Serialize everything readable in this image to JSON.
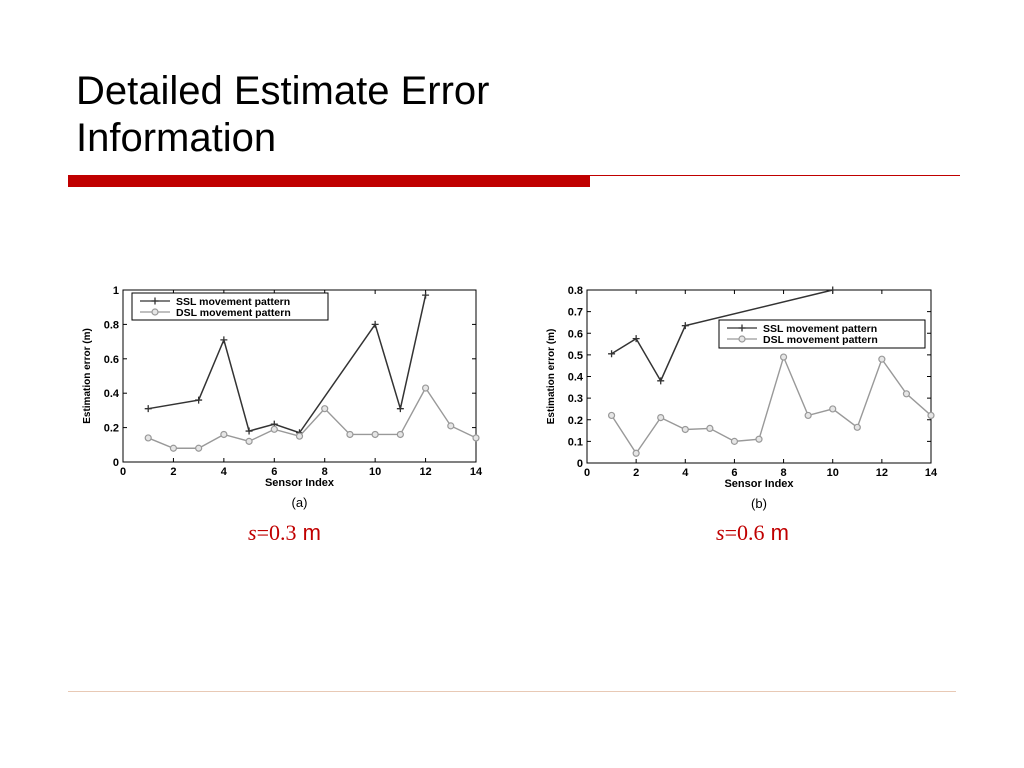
{
  "slide": {
    "title_line1": "Detailed Estimate Error",
    "title_line2": "Information",
    "accent_color": "#c00000"
  },
  "captions": [
    {
      "symbol": "s",
      "value": "=0.3",
      "unit": " m"
    },
    {
      "symbol": "s",
      "value": "=0.6",
      "unit": " m"
    }
  ],
  "chart_data": [
    {
      "type": "line",
      "panel_label": "(a)",
      "xlabel": "Sensor Index",
      "ylabel": "Estimation error (m)",
      "xlim": [
        0,
        14
      ],
      "ylim": [
        0,
        1
      ],
      "xticks": [
        0,
        2,
        4,
        6,
        8,
        10,
        12,
        14
      ],
      "yticks": [
        0,
        0.2,
        0.4,
        0.6,
        0.8,
        1
      ],
      "ytick_labels": [
        "0",
        "0.2",
        "0.4",
        "0.6",
        "0.8",
        "1"
      ],
      "legend_position": "top-left",
      "grid": false,
      "series": [
        {
          "name": "SSL movement pattern",
          "marker": "plus",
          "color": "#333333",
          "x": [
            1,
            3,
            4,
            5,
            6,
            7,
            10,
            11,
            12
          ],
          "y": [
            0.31,
            0.36,
            0.71,
            0.18,
            0.22,
            0.17,
            0.8,
            0.31,
            0.97
          ]
        },
        {
          "name": "DSL movement pattern",
          "marker": "circle",
          "color": "#999999",
          "x": [
            1,
            2,
            3,
            4,
            5,
            6,
            7,
            8,
            9,
            10,
            11,
            12,
            13,
            14
          ],
          "y": [
            0.14,
            0.08,
            0.08,
            0.16,
            0.12,
            0.19,
            0.15,
            0.31,
            0.16,
            0.16,
            0.16,
            0.43,
            0.21,
            0.14
          ]
        }
      ]
    },
    {
      "type": "line",
      "panel_label": "(b)",
      "xlabel": "Sensor Index",
      "ylabel": "Estimation error (m)",
      "xlim": [
        0,
        14
      ],
      "ylim": [
        0,
        0.8
      ],
      "xticks": [
        0,
        2,
        4,
        6,
        8,
        10,
        12,
        14
      ],
      "yticks": [
        0,
        0.1,
        0.2,
        0.3,
        0.4,
        0.5,
        0.6,
        0.7,
        0.8
      ],
      "ytick_labels": [
        "0",
        "0.1",
        "0.2",
        "0.3",
        "0.4",
        "0.5",
        "0.6",
        "0.7",
        "0.8"
      ],
      "legend_position": "top-right",
      "grid": false,
      "series": [
        {
          "name": "SSL movement pattern",
          "marker": "plus",
          "color": "#333333",
          "x": [
            1,
            2,
            3,
            4,
            10
          ],
          "y": [
            0.505,
            0.575,
            0.38,
            0.635,
            0.8
          ]
        },
        {
          "name": "DSL movement pattern",
          "marker": "circle",
          "color": "#999999",
          "x": [
            1,
            2,
            3,
            4,
            5,
            6,
            7,
            8,
            9,
            10,
            11,
            12,
            13,
            14
          ],
          "y": [
            0.22,
            0.045,
            0.21,
            0.155,
            0.16,
            0.1,
            0.11,
            0.49,
            0.22,
            0.25,
            0.165,
            0.48,
            0.32,
            0.22
          ]
        }
      ]
    }
  ]
}
